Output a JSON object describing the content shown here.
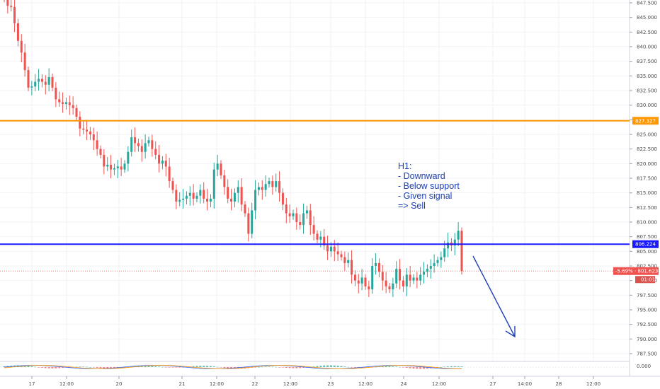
{
  "chart_data": {
    "type": "candlestick",
    "timeframe_note": "H1",
    "y_axis": {
      "min": 785.0,
      "max": 848.5,
      "ticks": [
        "847.500",
        "845.000",
        "842.500",
        "840.000",
        "837.500",
        "835.000",
        "832.500",
        "830.000",
        "827.500",
        "825.000",
        "822.500",
        "820.000",
        "817.500",
        "815.000",
        "812.500",
        "810.000",
        "807.500",
        "805.000",
        "802.500",
        "800.000",
        "797.500",
        "795.000",
        "792.500",
        "790.000",
        "787.500"
      ],
      "indicator_tick": "0.000"
    },
    "x_axis": {
      "labels": [
        "17",
        "12:00",
        "20",
        "21",
        "12:00",
        "22",
        "12:00",
        "23",
        "12:00",
        "24",
        "12:00",
        "27",
        "14:00",
        "28",
        "12:00"
      ]
    },
    "horizontal_lines": [
      {
        "name": "resistance",
        "price": 827.327,
        "label": "827.327",
        "color": "#ff9800"
      },
      {
        "name": "support",
        "price": 806.224,
        "label": "806.224",
        "color": "#1a1aff"
      },
      {
        "name": "last-price",
        "price": 801.623,
        "label": "-5.69% · 801.623",
        "color": "#ef5350",
        "countdown": "01:01"
      }
    ],
    "annotation": {
      "lines": [
        "H1:",
        "- Downward",
        "- Below support",
        "- Given signal",
        "=> Sell"
      ]
    },
    "colors": {
      "up": "#26a69a",
      "down": "#ef5350",
      "arrow": "#1e40b4"
    },
    "close_values": [
      848.2,
      847.0,
      846.8,
      844.0,
      841.0,
      839.0,
      836.0,
      833.0,
      833.2,
      834.0,
      834.5,
      834.0,
      833.5,
      834.8,
      833.0,
      831.0,
      830.5,
      830.2,
      830.5,
      830.0,
      829.5,
      828.0,
      826.0,
      825.8,
      825.5,
      825.0,
      824.0,
      822.5,
      821.5,
      819.5,
      819.8,
      819.0,
      819.2,
      819.5,
      819.0,
      820.0,
      822.0,
      824.5,
      823.5,
      823.0,
      822.0,
      823.5,
      824.0,
      822.5,
      821.5,
      820.0,
      820.5,
      819.5,
      817.0,
      815.5,
      813.5,
      813.8,
      814.0,
      814.5,
      815.0,
      814.0,
      814.5,
      815.5,
      814.0,
      813.5,
      814.0,
      819.0,
      820.0,
      818.0,
      816.0,
      814.0,
      813.5,
      815.0,
      816.0,
      813.0,
      811.5,
      808.0,
      812.0,
      815.5,
      816.0,
      815.5,
      816.5,
      817.0,
      816.0,
      817.0,
      815.0,
      813.0,
      811.5,
      811.0,
      811.5,
      810.0,
      809.5,
      811.5,
      812.0,
      809.5,
      808.0,
      807.0,
      807.5,
      806.0,
      805.0,
      805.8,
      805.0,
      804.5,
      804.0,
      803.0,
      803.5,
      801.0,
      800.0,
      799.5,
      800.5,
      799.0,
      798.5,
      802.5,
      803.0,
      801.5,
      800.0,
      799.0,
      798.5,
      799.5,
      802.0,
      800.0,
      799.0,
      801.0,
      800.0,
      800.5,
      800.0,
      801.0,
      801.5,
      802.0,
      802.5,
      803.0,
      803.5,
      804.0,
      805.5,
      806.5,
      806.0,
      807.0,
      808.5,
      801.623
    ]
  }
}
